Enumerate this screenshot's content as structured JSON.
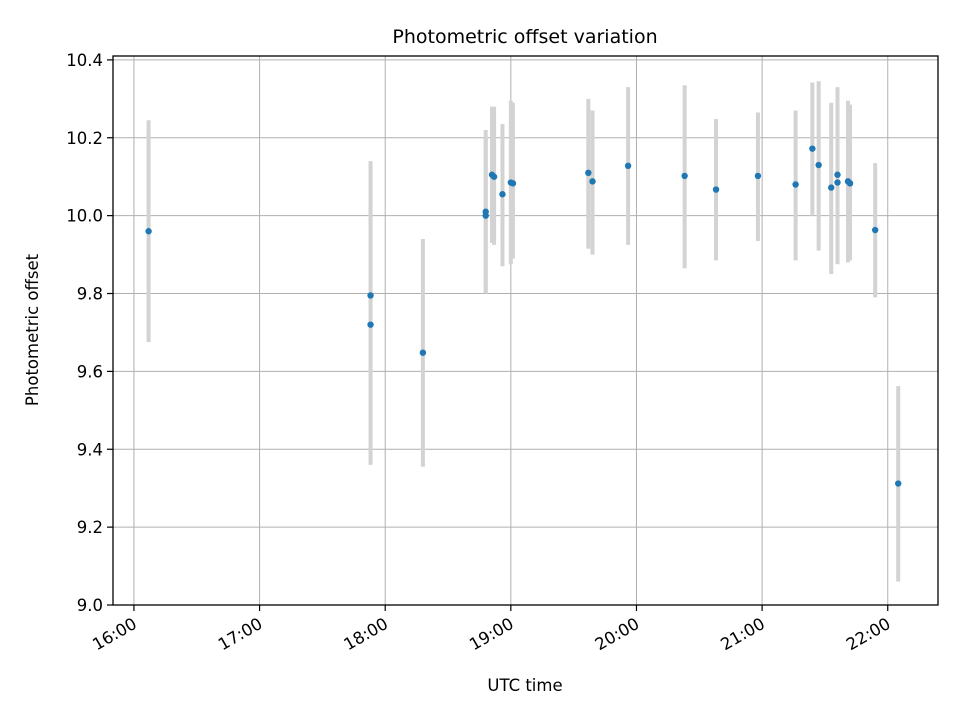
{
  "chart_data": {
    "type": "scatter",
    "title": "Photometric offset variation",
    "xlabel": "UTC time",
    "ylabel": "Photometric offset",
    "xlim": [
      "15:50",
      "22:24"
    ],
    "ylim": [
      9.0,
      10.41
    ],
    "grid": true,
    "x_ticks": [
      "16:00",
      "17:00",
      "18:00",
      "19:00",
      "20:00",
      "21:00",
      "22:00"
    ],
    "y_ticks": [
      9.0,
      9.2,
      9.4,
      9.6,
      9.8,
      10.0,
      10.2,
      10.4
    ],
    "y_tick_labels": [
      "9.0",
      "9.2",
      "9.4",
      "9.6",
      "9.8",
      "10.0",
      "10.2",
      "10.4"
    ],
    "errorbar_color": "#d3d3d3",
    "point_color": "#1f77b4",
    "points": [
      {
        "t": "16:07",
        "y": 9.96,
        "low": 9.675,
        "high": 10.245
      },
      {
        "t": "17:53",
        "y": 9.795,
        "low": 9.455,
        "high": 10.14
      },
      {
        "t": "17:53",
        "y": 9.72,
        "low": 9.36,
        "high": 10.08
      },
      {
        "t": "18:18",
        "y": 9.648,
        "low": 9.355,
        "high": 9.94
      },
      {
        "t": "18:48",
        "y": 10.01,
        "low": 9.8,
        "high": 10.22
      },
      {
        "t": "18:48",
        "y": 10.0,
        "low": 9.8,
        "high": 10.2
      },
      {
        "t": "18:51",
        "y": 10.105,
        "low": 9.93,
        "high": 10.28
      },
      {
        "t": "18:52",
        "y": 10.1,
        "low": 9.925,
        "high": 10.28
      },
      {
        "t": "18:56",
        "y": 10.055,
        "low": 9.87,
        "high": 10.235
      },
      {
        "t": "19:00",
        "y": 10.085,
        "low": 9.875,
        "high": 10.295
      },
      {
        "t": "19:01",
        "y": 10.083,
        "low": 9.89,
        "high": 10.29
      },
      {
        "t": "19:37",
        "y": 10.11,
        "low": 9.915,
        "high": 10.3
      },
      {
        "t": "19:39",
        "y": 10.088,
        "low": 9.9,
        "high": 10.27
      },
      {
        "t": "19:56",
        "y": 10.128,
        "low": 9.925,
        "high": 10.33
      },
      {
        "t": "20:23",
        "y": 10.102,
        "low": 9.865,
        "high": 10.335
      },
      {
        "t": "20:38",
        "y": 10.067,
        "low": 9.885,
        "high": 10.248
      },
      {
        "t": "20:58",
        "y": 10.102,
        "low": 9.935,
        "high": 10.265
      },
      {
        "t": "21:16",
        "y": 10.08,
        "low": 9.885,
        "high": 10.27
      },
      {
        "t": "21:24",
        "y": 10.172,
        "low": 10.0,
        "high": 10.342
      },
      {
        "t": "21:27",
        "y": 10.13,
        "low": 9.91,
        "high": 10.345
      },
      {
        "t": "21:33",
        "y": 10.072,
        "low": 9.85,
        "high": 10.29
      },
      {
        "t": "21:36",
        "y": 10.105,
        "low": 9.88,
        "high": 10.33
      },
      {
        "t": "21:36",
        "y": 10.085,
        "low": 9.875,
        "high": 10.3
      },
      {
        "t": "21:41",
        "y": 10.088,
        "low": 9.88,
        "high": 10.295
      },
      {
        "t": "21:42",
        "y": 10.083,
        "low": 9.885,
        "high": 10.285
      },
      {
        "t": "21:54",
        "y": 9.963,
        "low": 9.79,
        "high": 10.135
      },
      {
        "t": "22:05",
        "y": 9.312,
        "low": 9.06,
        "high": 9.562
      }
    ]
  }
}
